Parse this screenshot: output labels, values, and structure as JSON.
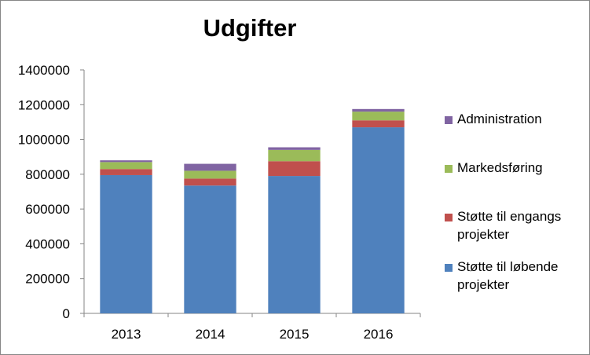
{
  "chart_data": {
    "type": "bar",
    "stacked": true,
    "title": "Udgifter",
    "xlabel": "",
    "ylabel": "",
    "categories": [
      "2013",
      "2014",
      "2015",
      "2016"
    ],
    "ylim": [
      0,
      1400000
    ],
    "yticks": [
      "0",
      "200000",
      "400000",
      "600000",
      "800000",
      "1000000",
      "1200000",
      "1400000"
    ],
    "grid": false,
    "legend_position": "right",
    "series": [
      {
        "name": "Støtte til løbende projekter",
        "color": "#4F81BD",
        "values": [
          795000,
          735000,
          790000,
          1070000
        ]
      },
      {
        "name": "Støtte til engangs projekter",
        "color": "#C0504D",
        "values": [
          35000,
          40000,
          85000,
          40000
        ]
      },
      {
        "name": "Markedsføring",
        "color": "#9BBB59",
        "values": [
          40000,
          45000,
          65000,
          50000
        ]
      },
      {
        "name": "Administration",
        "color": "#8064A2",
        "values": [
          10000,
          40000,
          15000,
          15000
        ]
      }
    ]
  },
  "legend": [
    {
      "label_line1": "Administration",
      "label_line2": "",
      "color": "#8064A2"
    },
    {
      "label_line1": "Markedsføring",
      "label_line2": "",
      "color": "#9BBB59"
    },
    {
      "label_line1": "Støtte til engangs",
      "label_line2": "projekter",
      "color": "#C0504D"
    },
    {
      "label_line1": "Støtte til løbende",
      "label_line2": "projekter",
      "color": "#4F81BD"
    }
  ]
}
